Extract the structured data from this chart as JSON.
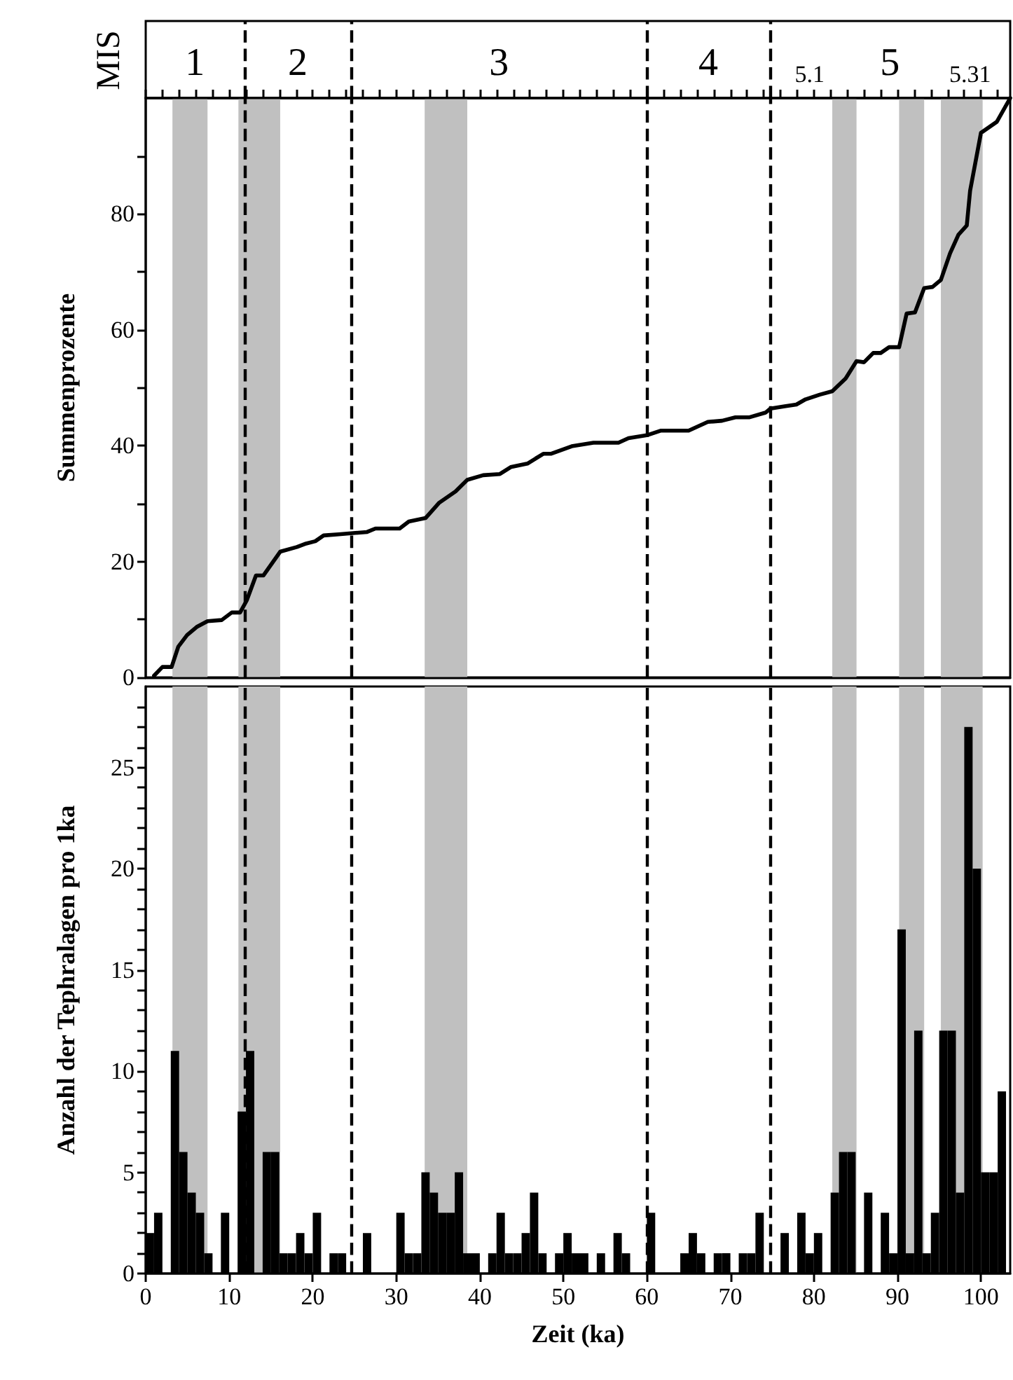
{
  "chart_data": [
    {
      "type": "line",
      "ylabel": "Summenprozente",
      "color": "#000000",
      "x": [
        1.0,
        2.0,
        3.1,
        3.9,
        4.95,
        6.1,
        7.4,
        9.1,
        10.3,
        11.3,
        12.1,
        13.2,
        14.1,
        16.1,
        18.1,
        19.2,
        20.3,
        21.3,
        23.1,
        26.5,
        27.5,
        30.4,
        31.5,
        33.5,
        35.1,
        37.1,
        38.5,
        40.4,
        42.4,
        43.7,
        45.7,
        47.6,
        48.5,
        51.0,
        53.6,
        56.6,
        57.8,
        60.0,
        61.7,
        65.0,
        67.3,
        69.0,
        70.6,
        72.3,
        74.2,
        74.8,
        76.5,
        77.9,
        79.0,
        80.7,
        82.2,
        83.8,
        85.1,
        86.0,
        87.1,
        88.0,
        89.0,
        90.2,
        91.1,
        92.1,
        93.2,
        94.2,
        95.2,
        96.3,
        97.3,
        98.3,
        98.7,
        100.0,
        101.9,
        103.5
      ],
      "values": [
        0.3,
        1.8,
        1.8,
        5.3,
        7.3,
        8.7,
        9.7,
        9.9,
        11.2,
        11.2,
        13.3,
        17.6,
        17.6,
        21.7,
        22.5,
        23.1,
        23.5,
        24.5,
        24.7,
        25.1,
        25.7,
        25.7,
        26.9,
        27.5,
        30.1,
        32.1,
        34.1,
        34.9,
        35.1,
        36.3,
        36.9,
        38.6,
        38.6,
        39.9,
        40.5,
        40.5,
        41.3,
        41.8,
        42.6,
        42.6,
        44.1,
        44.3,
        44.9,
        44.9,
        45.7,
        46.4,
        46.8,
        47.1,
        48.0,
        48.8,
        49.4,
        51.6,
        54.6,
        54.4,
        56.0,
        56.0,
        57.0,
        57.0,
        62.8,
        63.0,
        67.2,
        67.4,
        68.6,
        73.2,
        76.4,
        78.0,
        84.0,
        94.0,
        95.9,
        100
      ],
      "xlim": [
        0,
        103.5
      ],
      "xticks": [
        {
          "value": 0,
          "label": null
        },
        {
          "value": 2,
          "label": null
        },
        {
          "value": 4,
          "label": null
        },
        {
          "value": 6,
          "label": null
        },
        {
          "value": 8,
          "label": null
        },
        {
          "value": 10,
          "label": null
        },
        {
          "value": 12,
          "label": null
        },
        {
          "value": 14,
          "label": null
        },
        {
          "value": 16,
          "label": null
        },
        {
          "value": 18,
          "label": null
        },
        {
          "value": 20,
          "label": null
        },
        {
          "value": 22,
          "label": null
        },
        {
          "value": 24,
          "label": null
        },
        {
          "value": 26,
          "label": null
        },
        {
          "value": 28,
          "label": null
        },
        {
          "value": 30,
          "label": null
        },
        {
          "value": 32,
          "label": null
        },
        {
          "value": 34,
          "label": null
        },
        {
          "value": 36,
          "label": null
        },
        {
          "value": 38,
          "label": null
        },
        {
          "value": 40,
          "label": null
        },
        {
          "value": 42,
          "label": null
        },
        {
          "value": 44,
          "label": null
        },
        {
          "value": 46,
          "label": null
        },
        {
          "value": 48,
          "label": null
        },
        {
          "value": 50,
          "label": null
        },
        {
          "value": 52,
          "label": null
        },
        {
          "value": 54,
          "label": null
        },
        {
          "value": 56,
          "label": null
        },
        {
          "value": 58,
          "label": null
        },
        {
          "value": 60,
          "label": null
        },
        {
          "value": 62,
          "label": null
        },
        {
          "value": 64,
          "label": null
        },
        {
          "value": 66,
          "label": null
        },
        {
          "value": 68,
          "label": null
        },
        {
          "value": 70,
          "label": null
        },
        {
          "value": 72,
          "label": null
        },
        {
          "value": 74,
          "label": null
        },
        {
          "value": 76,
          "label": null
        },
        {
          "value": 78,
          "label": null
        },
        {
          "value": 80,
          "label": null
        },
        {
          "value": 82,
          "label": null
        },
        {
          "value": 84,
          "label": null
        },
        {
          "value": 86,
          "label": null
        },
        {
          "value": 88,
          "label": null
        },
        {
          "value": 90,
          "label": null
        },
        {
          "value": 92,
          "label": null
        },
        {
          "value": 94,
          "label": null
        },
        {
          "value": 96,
          "label": null
        },
        {
          "value": 98,
          "label": null
        },
        {
          "value": 100,
          "label": null
        },
        {
          "value": 102,
          "label": null
        }
      ],
      "ylim": [
        0,
        100
      ],
      "yticks": [
        0,
        {
          "value": 10,
          "label": null
        },
        20,
        {
          "value": 30,
          "label": null
        },
        40,
        {
          "value": 50,
          "label": null
        },
        60,
        {
          "value": 70,
          "label": null
        },
        80,
        {
          "value": 90,
          "label": null
        }
      ],
      "tick_labels": "y",
      "bands": [
        {
          "axis": "x",
          "from": 3.2,
          "to": 7.4,
          "color": "#c0c0c0"
        },
        {
          "axis": "x",
          "from": 11.1,
          "to": 16.1,
          "color": "#c0c0c0"
        },
        {
          "axis": "x",
          "from": 33.4,
          "to": 38.5,
          "color": "#c0c0c0"
        },
        {
          "axis": "x",
          "from": 82.2,
          "to": 85.1,
          "color": "#c0c0c0"
        },
        {
          "axis": "x",
          "from": 90.2,
          "to": 93.2,
          "color": "#c0c0c0"
        },
        {
          "axis": "x",
          "from": 95.2,
          "to": 100.2,
          "color": "#c0c0c0"
        }
      ],
      "ref_lines": [
        {
          "axis": "x",
          "value": 11.8,
          "line_style": "dashed"
        },
        {
          "axis": "x",
          "value": 24.6,
          "line_style": "dashed"
        },
        {
          "axis": "x",
          "value": 60.0,
          "line_style": "dashed"
        },
        {
          "axis": "x",
          "value": 74.7,
          "line_style": "dashed"
        }
      ],
      "annotations": [
        "MIS",
        "1",
        "2",
        "3",
        "4",
        "5.1",
        "5",
        "5.31"
      ]
    },
    {
      "type": "histogram",
      "xlabel": "Zeit (ka)",
      "ylabel": "Anzahl der Tephralagen pro 1ka",
      "color": "#000000",
      "bins": [
        0,
        1,
        2,
        3,
        4,
        5,
        6,
        7,
        8,
        9,
        10,
        11,
        12,
        13,
        14,
        15,
        16,
        17,
        18,
        19,
        20,
        21,
        22,
        23,
        24,
        25,
        26,
        27,
        28,
        29,
        30,
        31,
        32,
        33,
        34,
        35,
        36,
        37,
        38,
        39,
        40,
        41,
        42,
        43,
        44,
        45,
        46,
        47,
        48,
        49,
        50,
        51,
        52,
        53,
        54,
        55,
        56,
        57,
        58,
        59,
        60,
        61,
        62,
        63,
        64,
        65,
        66,
        67,
        68,
        69,
        70,
        71,
        72,
        73,
        74,
        75,
        76,
        77,
        78,
        79,
        80,
        81,
        82,
        83,
        84,
        85,
        86,
        87,
        88,
        89,
        90,
        91,
        92,
        93,
        94,
        95,
        96,
        97,
        98,
        99,
        100,
        101,
        102,
        103
      ],
      "values": [
        2,
        3,
        0,
        11,
        6,
        4,
        3,
        1,
        0,
        3,
        0,
        8,
        11,
        0,
        6,
        6,
        1,
        1,
        2,
        1,
        3,
        0,
        1,
        1,
        0,
        0,
        2,
        0,
        0,
        0,
        3,
        1,
        1,
        5,
        4,
        3,
        3,
        5,
        1,
        1,
        0,
        1,
        3,
        1,
        1,
        2,
        4,
        1,
        0,
        1,
        2,
        1,
        1,
        0,
        1,
        0,
        2,
        1,
        0,
        0,
        3,
        0,
        0,
        0,
        1,
        2,
        1,
        0,
        1,
        1,
        0,
        1,
        1,
        3,
        0,
        0,
        2,
        0,
        3,
        1,
        2,
        0,
        4,
        6,
        6,
        0,
        4,
        0,
        3,
        1,
        17,
        1,
        12,
        1,
        3,
        12,
        12,
        4,
        27,
        20,
        5,
        5,
        9
      ],
      "xlim": [
        0,
        103.5
      ],
      "xticks": [
        0,
        10,
        20,
        30,
        40,
        50,
        60,
        70,
        80,
        90,
        100
      ],
      "ylim": [
        0,
        29
      ],
      "yticks": [
        0,
        {
          "value": 1,
          "label": null
        },
        {
          "value": 2,
          "label": null
        },
        {
          "value": 3,
          "label": null
        },
        {
          "value": 4,
          "label": null
        },
        5,
        {
          "value": 6,
          "label": null
        },
        {
          "value": 7,
          "label": null
        },
        {
          "value": 8,
          "label": null
        },
        {
          "value": 9,
          "label": null
        },
        10,
        {
          "value": 11,
          "label": null
        },
        {
          "value": 12,
          "label": null
        },
        {
          "value": 13,
          "label": null
        },
        {
          "value": 14,
          "label": null
        },
        15,
        {
          "value": 16,
          "label": null
        },
        {
          "value": 17,
          "label": null
        },
        {
          "value": 18,
          "label": null
        },
        {
          "value": 19,
          "label": null
        },
        20,
        {
          "value": 21,
          "label": null
        },
        {
          "value": 22,
          "label": null
        },
        {
          "value": 23,
          "label": null
        },
        {
          "value": 24,
          "label": null
        },
        25,
        {
          "value": 26,
          "label": null
        },
        {
          "value": 27,
          "label": null
        },
        {
          "value": 28,
          "label": null
        }
      ],
      "bands": [
        {
          "axis": "x",
          "from": 3.2,
          "to": 7.4,
          "color": "#c0c0c0"
        },
        {
          "axis": "x",
          "from": 11.1,
          "to": 16.1,
          "color": "#c0c0c0"
        },
        {
          "axis": "x",
          "from": 33.4,
          "to": 38.5,
          "color": "#c0c0c0"
        },
        {
          "axis": "x",
          "from": 82.2,
          "to": 85.1,
          "color": "#c0c0c0"
        },
        {
          "axis": "x",
          "from": 90.2,
          "to": 93.2,
          "color": "#c0c0c0"
        },
        {
          "axis": "x",
          "from": 95.2,
          "to": 100.2,
          "color": "#c0c0c0"
        }
      ],
      "ref_lines": [
        {
          "axis": "x",
          "value": 11.8,
          "line_style": "dashed"
        },
        {
          "axis": "x",
          "value": 24.6,
          "line_style": "dashed"
        },
        {
          "axis": "x",
          "value": 60.0,
          "line_style": "dashed"
        },
        {
          "axis": "x",
          "value": 74.7,
          "line_style": "dashed"
        }
      ]
    }
  ]
}
